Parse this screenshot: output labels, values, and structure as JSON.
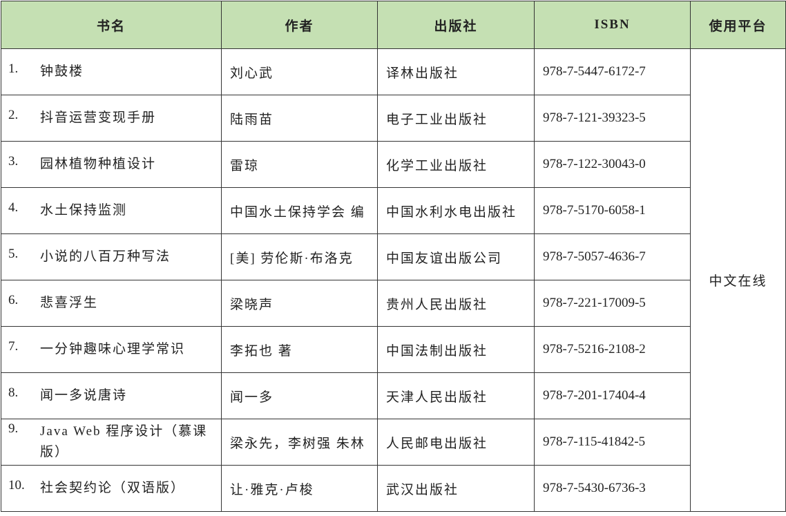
{
  "headers": [
    "书名",
    "作者",
    "出版社",
    "ISBN",
    "使用平台"
  ],
  "header_color": "#c5e0b3",
  "platform": "中文在线",
  "rows": [
    {
      "num": "1.",
      "title": "钟鼓楼",
      "author": "刘心武",
      "publisher": "译林出版社",
      "isbn": "978-7-5447-6172-7"
    },
    {
      "num": "2.",
      "title": "抖音运营变现手册",
      "author": "陆雨苗",
      "publisher": "电子工业出版社",
      "isbn": "978-7-121-39323-5"
    },
    {
      "num": "3.",
      "title": "园林植物种植设计",
      "author": "雷琼",
      "publisher": "化学工业出版社",
      "isbn": "978-7-122-30043-0"
    },
    {
      "num": "4.",
      "title": "水土保持监测",
      "author": "中国水土保持学会 编",
      "publisher": "中国水利水电出版社",
      "isbn": "978-7-5170-6058-1"
    },
    {
      "num": "5.",
      "title": "小说的八百万种写法",
      "author": "[美] 劳伦斯·布洛克",
      "publisher": "中国友谊出版公司",
      "isbn": "978-7-5057-4636-7"
    },
    {
      "num": "6.",
      "title": "悲喜浮生",
      "author": "梁晓声",
      "publisher": "贵州人民出版社",
      "isbn": "978-7-221-17009-5"
    },
    {
      "num": "7.",
      "title": "一分钟趣味心理学常识",
      "author": "李拓也 著",
      "publisher": "中国法制出版社",
      "isbn": "978-7-5216-2108-2"
    },
    {
      "num": "8.",
      "title": "闻一多说唐诗",
      "author": "闻一多",
      "publisher": "天津人民出版社",
      "isbn": "978-7-201-17404-4"
    },
    {
      "num": "9.",
      "title": "Java Web 程序设计（慕课版）",
      "author": "梁永先，李树强 朱林",
      "publisher": "人民邮电出版社",
      "isbn": "978-7-115-41842-5"
    },
    {
      "num": "10.",
      "title": "社会契约论（双语版）",
      "author": "让·雅克·卢梭",
      "publisher": "武汉出版社",
      "isbn": "978-7-5430-6736-3"
    }
  ]
}
